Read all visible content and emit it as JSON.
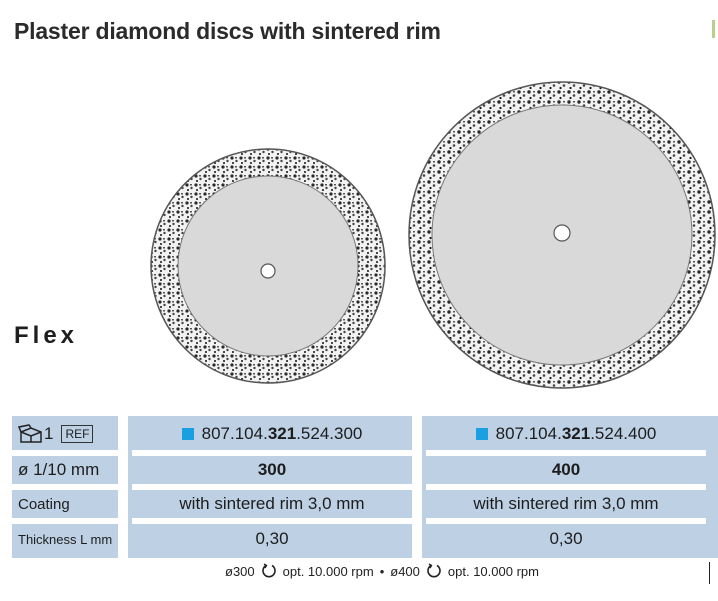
{
  "title": "Plaster diamond discs with sintered rim",
  "product_line": "Flex",
  "table": {
    "header": {
      "pack_count": "1",
      "ref_badge": "REF"
    },
    "rows": [
      {
        "label": "ø 1/10 mm",
        "values": [
          "300",
          "400"
        ]
      },
      {
        "label": "Coating",
        "values": [
          "with sintered rim 3,0 mm",
          "with sintered rim 3,0 mm"
        ]
      },
      {
        "label": "Thickness L mm",
        "values": [
          "0,30",
          "0,30"
        ]
      }
    ],
    "refs": [
      {
        "prefix": "807.104.",
        "bold": "321",
        "suffix": ".524.300"
      },
      {
        "prefix": "807.104.",
        "bold": "321",
        "suffix": ".524.400"
      }
    ]
  },
  "footer": {
    "item1_size": "ø300",
    "item1_speed": "opt. 10.000 rpm",
    "separator": "•",
    "item2_size": "ø400",
    "item2_speed": "opt. 10.000 rpm"
  },
  "colors": {
    "table_bg": "#bdd0e4",
    "ref_square": "#1aa0e0",
    "disc_core": "#d9d9d9"
  },
  "icons": [
    "package-icon",
    "rotation-icon"
  ]
}
